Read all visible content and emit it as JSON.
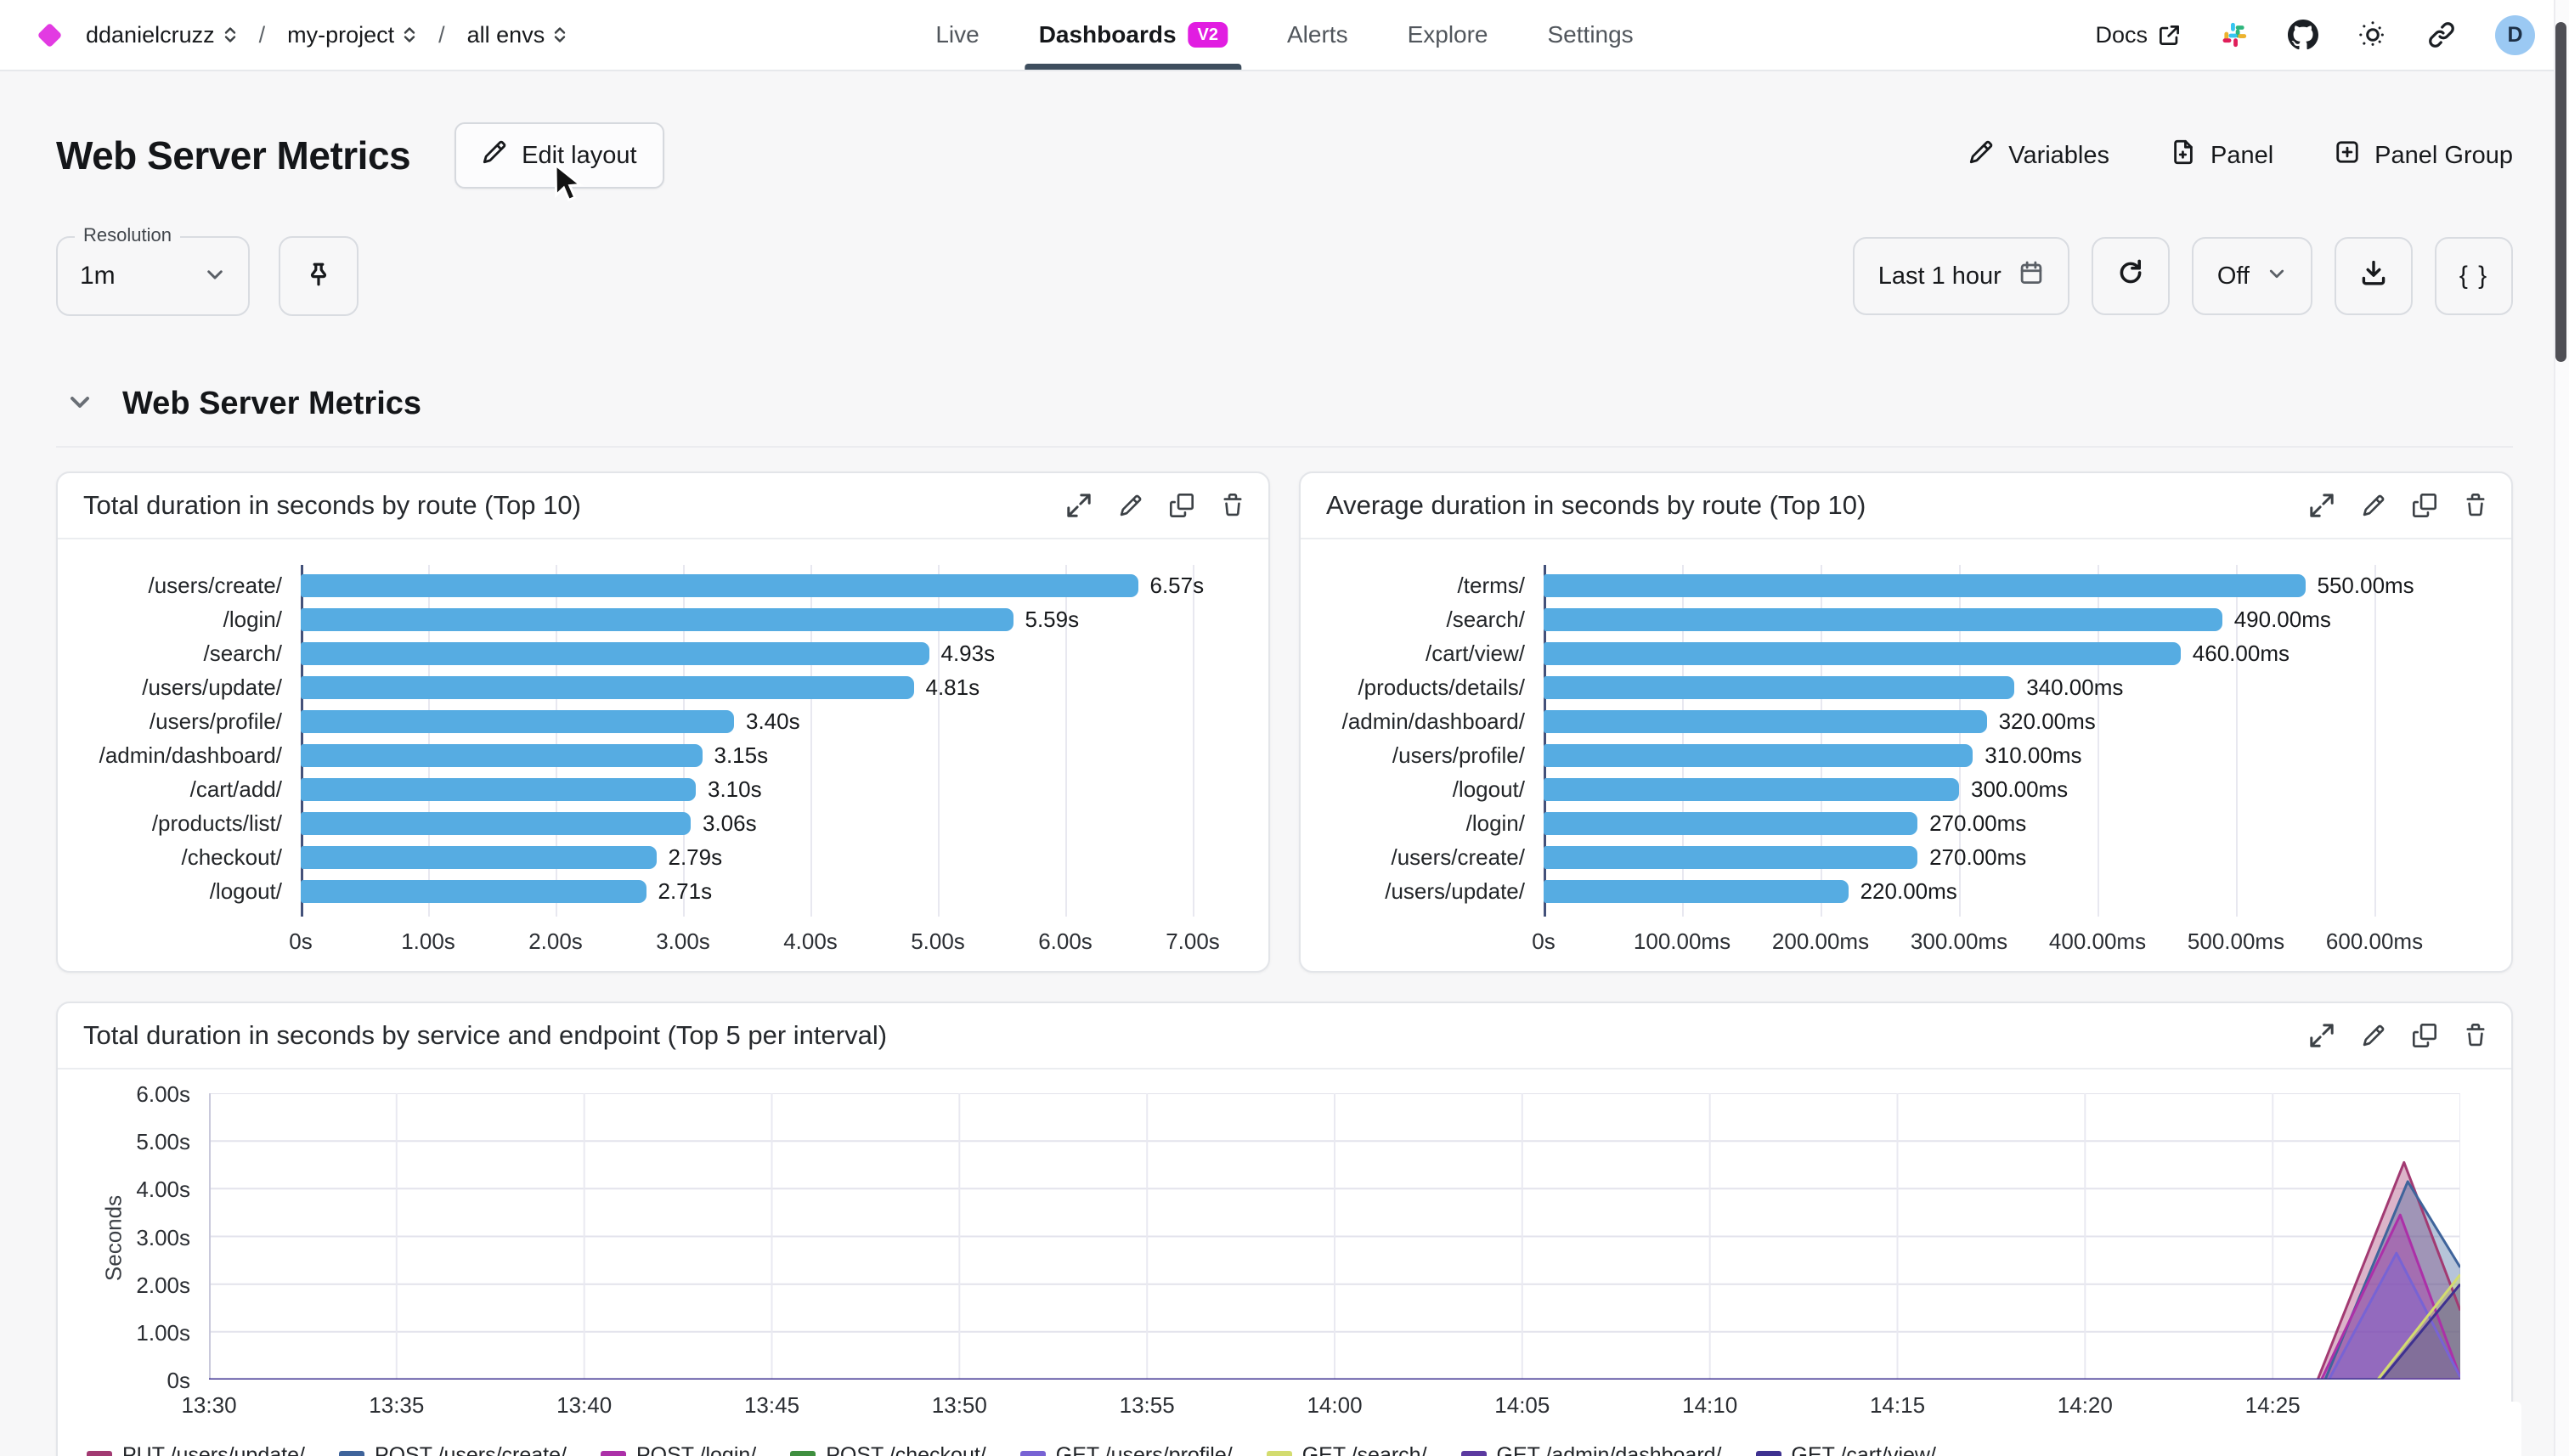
{
  "nav": {
    "breadcrumb": {
      "org": "ddanielcruzz",
      "project": "my-project",
      "env": "all envs",
      "separator": "/"
    },
    "tabs": [
      {
        "label": "Live",
        "active": false
      },
      {
        "label": "Dashboards",
        "active": true,
        "badge": "V2"
      },
      {
        "label": "Alerts",
        "active": false
      },
      {
        "label": "Explore",
        "active": false
      },
      {
        "label": "Settings",
        "active": false
      }
    ],
    "right": {
      "docs_label": "Docs",
      "icons": [
        "slack-icon",
        "github-icon",
        "theme-icon",
        "link-icon"
      ],
      "avatar_letter": "D"
    }
  },
  "header": {
    "title": "Web Server Metrics",
    "edit_layout_label": "Edit layout",
    "actions": [
      {
        "label": "Variables",
        "icon": "pencil-icon"
      },
      {
        "label": "Panel",
        "icon": "file-plus-icon"
      },
      {
        "label": "Panel Group",
        "icon": "plus-square-icon"
      }
    ]
  },
  "toolbar": {
    "resolution_label": "Resolution",
    "resolution_value": "1m",
    "time_range": "Last 1 hour",
    "refresh_interval": "Off",
    "code_button": "{ }"
  },
  "section": {
    "title": "Web Server Metrics"
  },
  "panel_action_icons": [
    "expand-icon",
    "edit-icon",
    "duplicate-icon",
    "delete-icon"
  ],
  "colors": {
    "accent_underline": "#3E4E5E",
    "badge_magenta": "#E11DE1",
    "brand_diamond": "#E23BE2",
    "bar_blue": "#56ACE2",
    "avatar_blue": "#9BC9F3"
  },
  "chart_data": [
    {
      "type": "bar",
      "orientation": "horizontal",
      "title": "Total duration in seconds by route (Top 10)",
      "categories": [
        "/users/create/",
        "/login/",
        "/search/",
        "/users/update/",
        "/users/profile/",
        "/admin/dashboard/",
        "/cart/add/",
        "/products/list/",
        "/checkout/",
        "/logout/"
      ],
      "values": [
        6.57,
        5.59,
        4.93,
        4.81,
        3.4,
        3.15,
        3.1,
        3.06,
        2.79,
        2.71
      ],
      "value_labels": [
        "6.57s",
        "5.59s",
        "4.93s",
        "4.81s",
        "3.40s",
        "3.15s",
        "3.10s",
        "3.06s",
        "2.79s",
        "2.71s"
      ],
      "xticks": [
        "0s",
        "1.00s",
        "2.00s",
        "3.00s",
        "4.00s",
        "5.00s",
        "6.00s",
        "7.00s"
      ],
      "xtick_values": [
        0,
        1,
        2,
        3,
        4,
        5,
        6,
        7
      ],
      "xlim": [
        0,
        7.4
      ],
      "bar_color": "#56ACE2",
      "grid": true
    },
    {
      "type": "bar",
      "orientation": "horizontal",
      "title": "Average duration in seconds by route (Top 10)",
      "categories": [
        "/terms/",
        "/search/",
        "/cart/view/",
        "/products/details/",
        "/admin/dashboard/",
        "/users/profile/",
        "/logout/",
        "/login/",
        "/users/create/",
        "/users/update/"
      ],
      "values": [
        550,
        490,
        460,
        340,
        320,
        310,
        300,
        270,
        270,
        220
      ],
      "value_labels": [
        "550.00ms",
        "490.00ms",
        "460.00ms",
        "340.00ms",
        "320.00ms",
        "310.00ms",
        "300.00ms",
        "270.00ms",
        "270.00ms",
        "220.00ms"
      ],
      "xticks": [
        "0s",
        "100.00ms",
        "200.00ms",
        "300.00ms",
        "400.00ms",
        "500.00ms",
        "600.00ms"
      ],
      "xtick_values": [
        0,
        100,
        200,
        300,
        400,
        500,
        600
      ],
      "xlim": [
        0,
        650
      ],
      "bar_color": "#56ACE2",
      "grid": true
    },
    {
      "type": "area",
      "title": "Total duration in seconds by service and endpoint (Top 5 per interval)",
      "ylabel": "Seconds",
      "yticks": [
        "6.00s",
        "5.00s",
        "4.00s",
        "3.00s",
        "2.00s",
        "1.00s",
        "0s"
      ],
      "ylim": [
        0,
        6
      ],
      "xticks": [
        "13:30",
        "13:35",
        "13:40",
        "13:45",
        "13:50",
        "13:55",
        "14:00",
        "14:05",
        "14:10",
        "14:15",
        "14:20",
        "14:25"
      ],
      "x_domain_minutes": [
        0,
        60
      ],
      "grid": true,
      "legend_position": "bottom",
      "series": [
        {
          "name": "PUT /users/update/",
          "color": "#A23A72",
          "points": [
            [
              0,
              0
            ],
            [
              56.2,
              0
            ],
            [
              58.5,
              4.55
            ],
            [
              60,
              1.45
            ]
          ]
        },
        {
          "name": "POST /users/create/",
          "color": "#3F649B",
          "points": [
            [
              0,
              0
            ],
            [
              56.4,
              0
            ],
            [
              58.6,
              4.15
            ],
            [
              60,
              2.35
            ]
          ]
        },
        {
          "name": "POST /login/",
          "color": "#AC30A8",
          "points": [
            [
              0,
              0
            ],
            [
              56.3,
              0
            ],
            [
              58.4,
              3.45
            ],
            [
              60,
              0.05
            ]
          ]
        },
        {
          "name": "POST /checkout/",
          "color": "#3F8F3F",
          "points": [
            [
              0,
              0
            ],
            [
              60,
              0
            ]
          ]
        },
        {
          "name": "GET /users/profile/",
          "color": "#7863D4",
          "points": [
            [
              0,
              0
            ],
            [
              56.5,
              0
            ],
            [
              58.3,
              2.65
            ],
            [
              60,
              0.05
            ]
          ]
        },
        {
          "name": "GET /search/",
          "color": "#D3DC6F",
          "points": [
            [
              0,
              0
            ],
            [
              57.8,
              0
            ],
            [
              60,
              2.2
            ]
          ]
        },
        {
          "name": "GET /admin/dashboard/",
          "color": "#5C3AA0",
          "points": [
            [
              0,
              0
            ],
            [
              60,
              0
            ]
          ]
        },
        {
          "name": "GET /cart/view/",
          "color": "#3E3190",
          "points": [
            [
              0,
              0
            ],
            [
              57.9,
              0
            ],
            [
              60,
              2.0
            ]
          ]
        }
      ]
    }
  ]
}
